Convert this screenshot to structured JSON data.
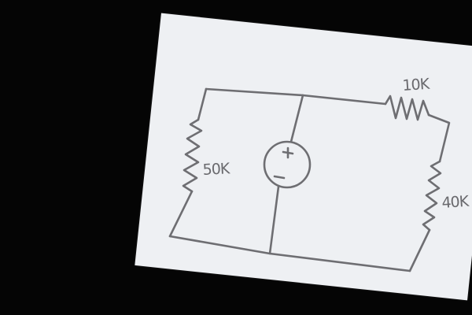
{
  "diagram": {
    "components": [
      {
        "id": "r1",
        "type": "resistor",
        "label": "50K"
      },
      {
        "id": "r2",
        "type": "resistor",
        "label": "10K"
      },
      {
        "id": "r3",
        "type": "resistor",
        "label": "40K"
      },
      {
        "id": "src",
        "type": "voltage-source",
        "polarity": "plus-top"
      }
    ],
    "colors": {
      "background": "#050505",
      "paper": "#eef0f3",
      "ink": "#6e6e72"
    }
  }
}
